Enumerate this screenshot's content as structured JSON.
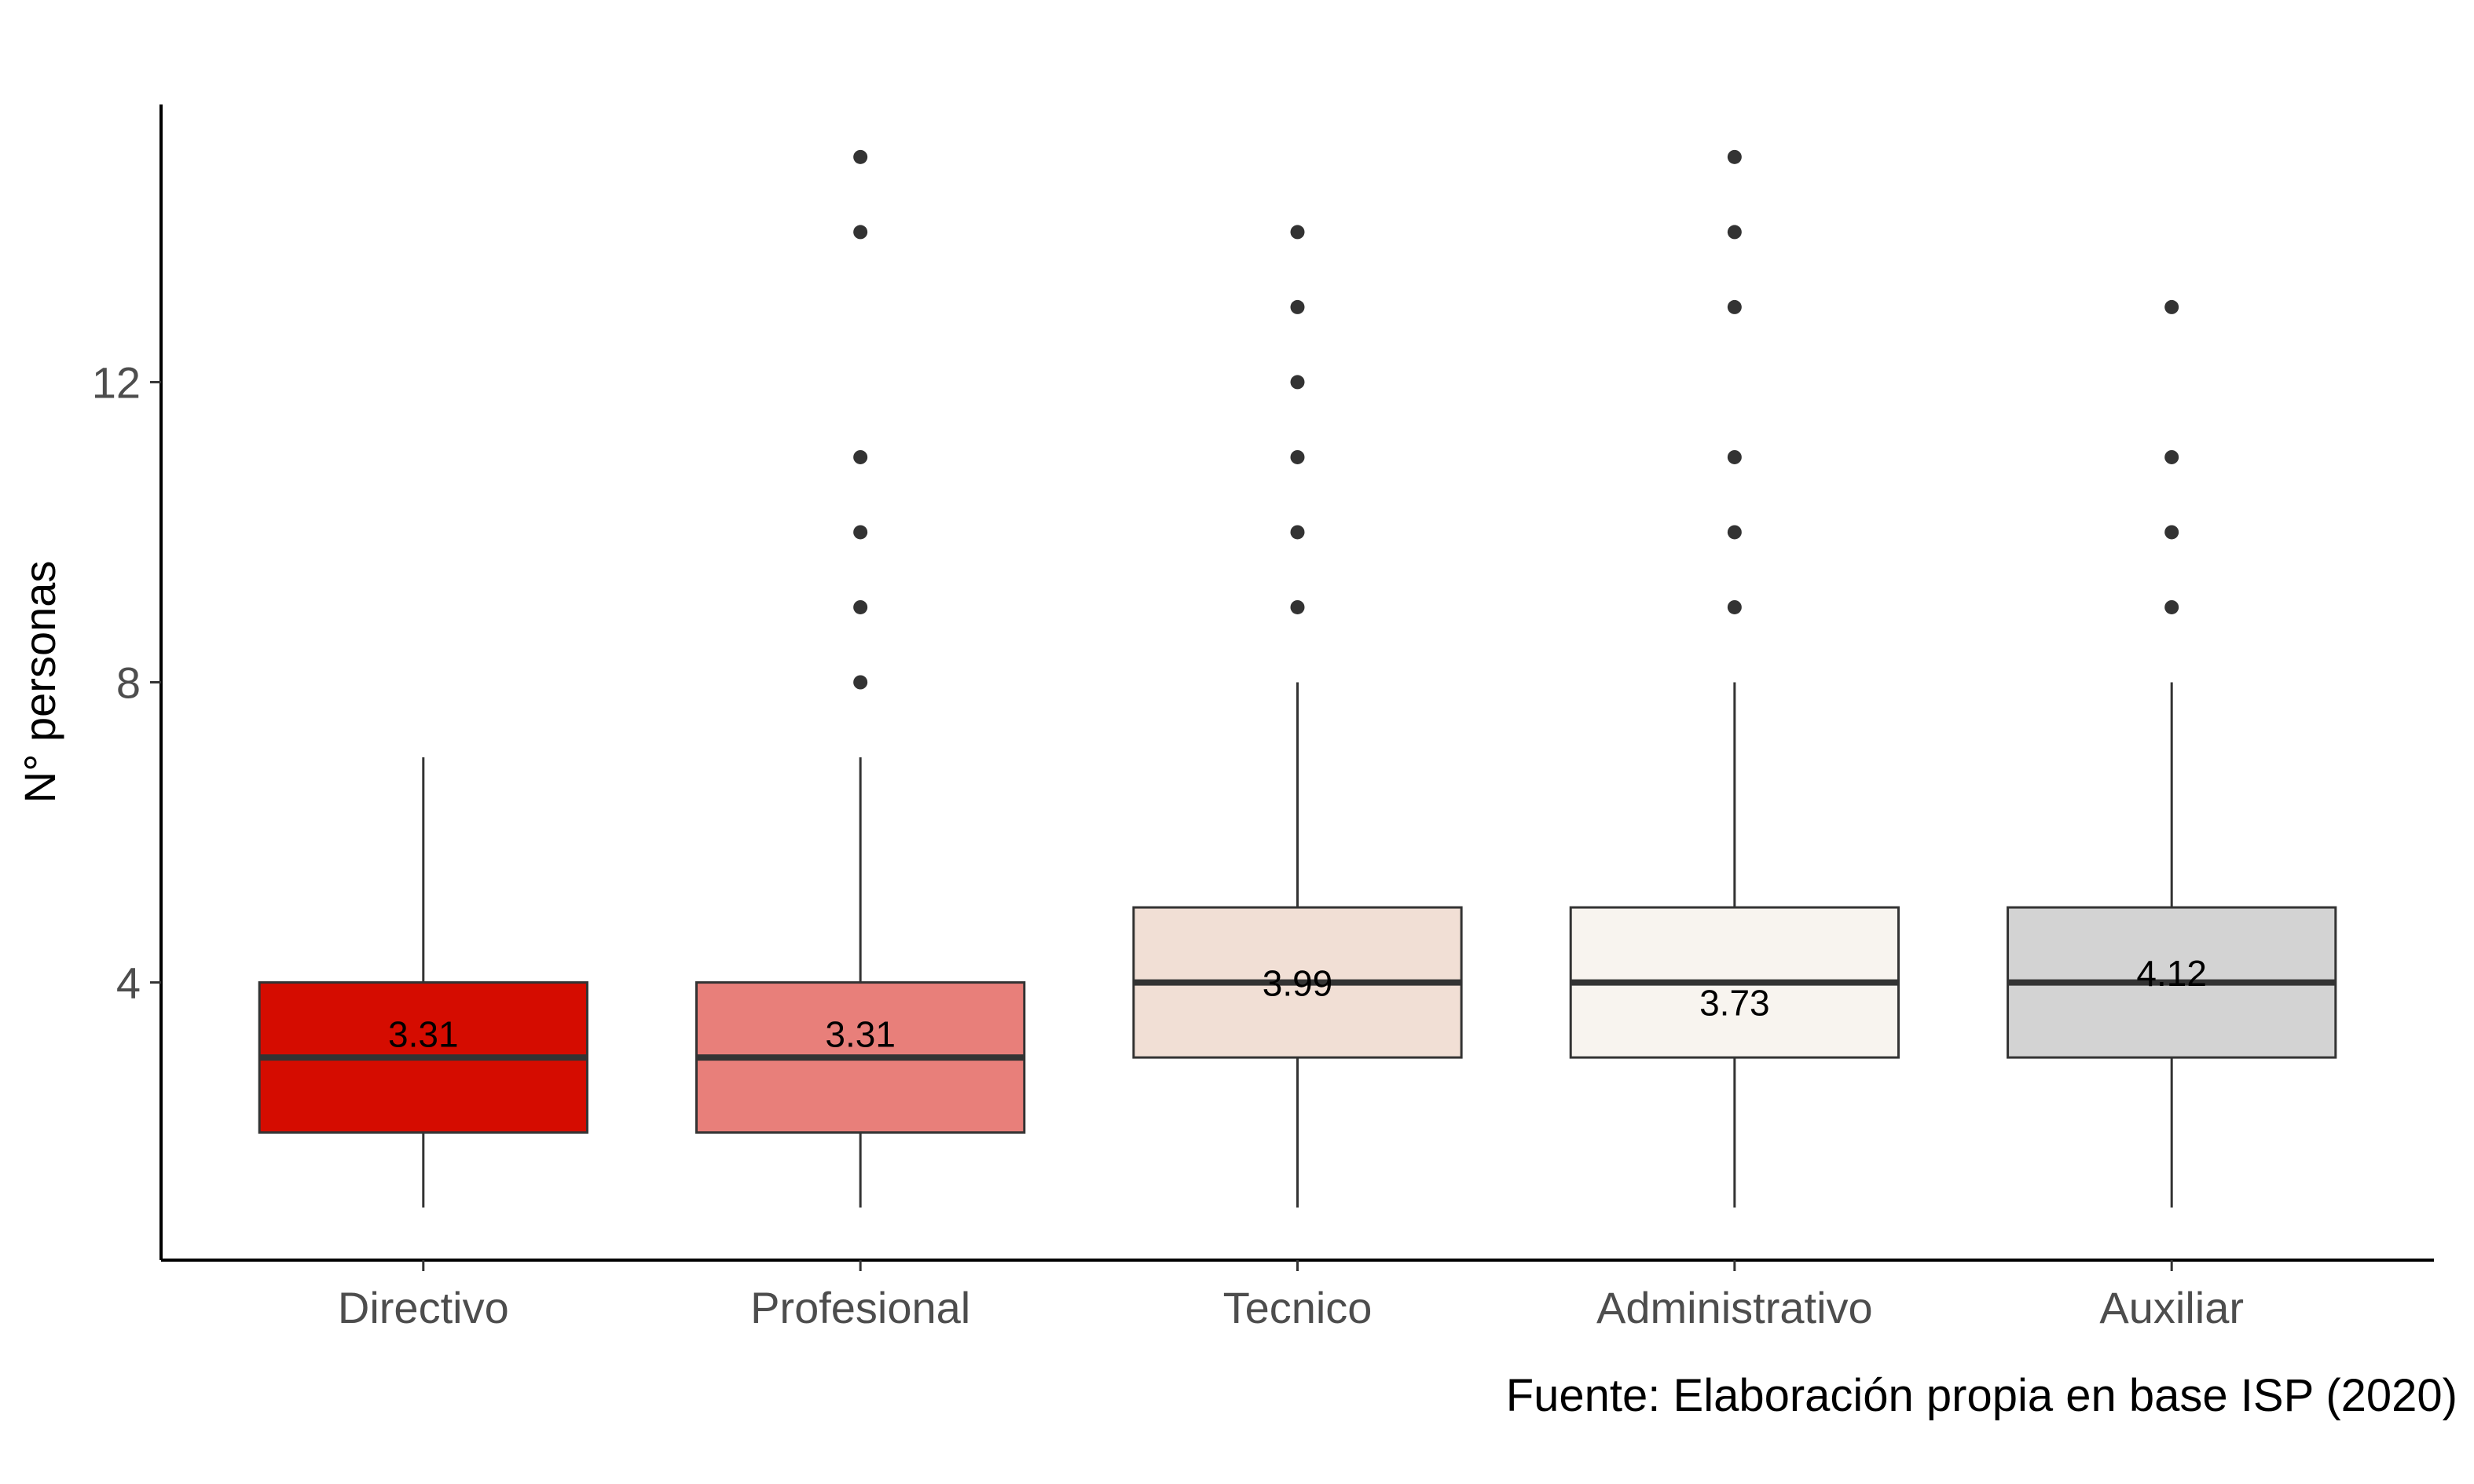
{
  "chart_data": {
    "type": "boxplot",
    "title": "",
    "xlabel": "",
    "ylabel": "N° personas",
    "ylim": [
      0.3,
      15.7
    ],
    "yticks": [
      4,
      8,
      12
    ],
    "caption": "Fuente: Elaboración propia en base ISP (2020)",
    "categories": [
      "Directivo",
      "Profesional",
      "Tecnico",
      "Administrativo",
      "Auxiliar"
    ],
    "boxes": [
      {
        "category": "Directivo",
        "whisker_low": 1,
        "q1": 2,
        "median": 3,
        "q3": 4,
        "whisker_high": 7,
        "mean": 3.31,
        "mean_label": "3.31",
        "outliers": [],
        "fill": "#d50c00"
      },
      {
        "category": "Profesional",
        "whisker_low": 1,
        "q1": 2,
        "median": 3,
        "q3": 4,
        "whisker_high": 7,
        "mean": 3.31,
        "mean_label": "3.31",
        "outliers": [
          8,
          9,
          10,
          11,
          14,
          15
        ],
        "fill": "#e87f7a"
      },
      {
        "category": "Tecnico",
        "whisker_low": 1,
        "q1": 3,
        "median": 4,
        "q3": 5,
        "whisker_high": 8,
        "mean": 3.99,
        "mean_label": "3.99",
        "outliers": [
          9,
          10,
          11,
          12,
          13,
          14
        ],
        "fill": "#f1dfd5"
      },
      {
        "category": "Administrativo",
        "whisker_low": 1,
        "q1": 3,
        "median": 4,
        "q3": 5,
        "whisker_high": 8,
        "mean": 3.73,
        "mean_label": "3.73",
        "outliers": [
          9,
          10,
          11,
          13,
          14,
          15
        ],
        "fill": "#f8f4ef"
      },
      {
        "category": "Auxiliar",
        "whisker_low": 1,
        "q1": 3,
        "median": 4,
        "q3": 5,
        "whisker_high": 8,
        "mean": 4.12,
        "mean_label": "4.12",
        "outliers": [
          9,
          10,
          11,
          13
        ],
        "fill": "#d3d3d3"
      }
    ],
    "grid": false,
    "legend": "none"
  }
}
